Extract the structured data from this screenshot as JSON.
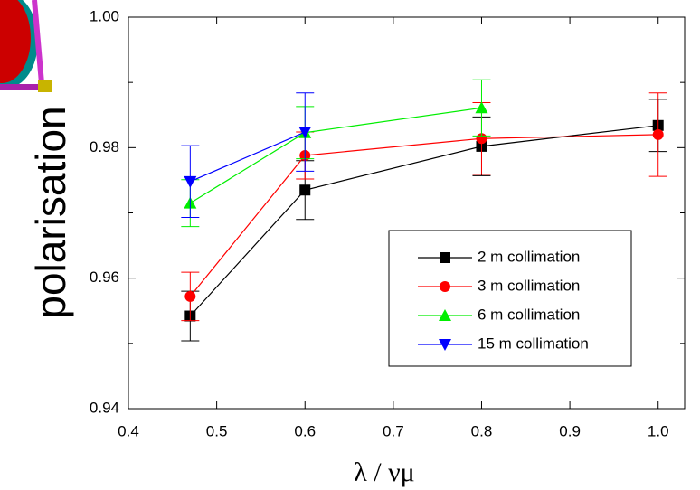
{
  "chart_data": {
    "type": "line",
    "xlabel": "λ / νμ",
    "ylabel": "polarisation",
    "x": [
      0.47,
      0.6,
      0.8,
      1.0
    ],
    "xlim": [
      0.4,
      1.03
    ],
    "ylim": [
      0.94,
      1.0
    ],
    "xticks": [
      0.4,
      0.5,
      0.6,
      0.7,
      0.8,
      0.9,
      {
        "value": 1.0,
        "label": "1.0"
      }
    ],
    "yticks": [
      0.94,
      0.96,
      {
        "value": 0.98,
        "label": "0.98"
      },
      {
        "value": 1.0,
        "label": "1.00"
      }
    ],
    "yminor": [
      0.95,
      0.97,
      0.99
    ],
    "legend": "lower-right",
    "series": [
      {
        "name": "2 m collimation",
        "color": "#000000",
        "marker": "square",
        "values": [
          0.9542,
          0.9735,
          0.9802,
          0.9834
        ],
        "errors": [
          0.0038,
          0.0045,
          0.0045,
          0.004
        ]
      },
      {
        "name": "3 m collimation",
        "color": "#ff0000",
        "marker": "circle",
        "values": [
          0.9572,
          0.9788,
          0.9814,
          0.982
        ],
        "errors": [
          0.0037,
          0.0036,
          0.0055,
          0.0064
        ]
      },
      {
        "name": "6 m collimation",
        "color": "#00ee00",
        "marker": "triangle-up",
        "values": [
          0.9715,
          0.9823,
          0.9861,
          null
        ],
        "errors": [
          0.0036,
          0.004,
          0.0043,
          null
        ]
      },
      {
        "name": "15 m collimation",
        "color": "#0000ff",
        "marker": "triangle-down",
        "values": [
          0.9748,
          0.9824,
          null,
          null
        ],
        "errors": [
          0.0055,
          0.006,
          null,
          null
        ]
      }
    ]
  }
}
